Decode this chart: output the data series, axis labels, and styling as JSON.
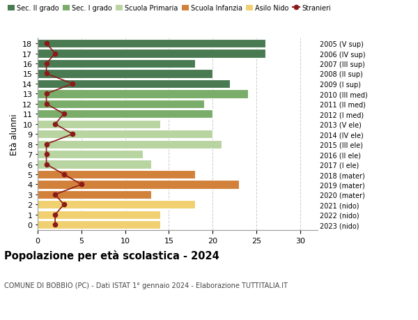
{
  "ages": [
    18,
    17,
    16,
    15,
    14,
    13,
    12,
    11,
    10,
    9,
    8,
    7,
    6,
    5,
    4,
    3,
    2,
    1,
    0
  ],
  "right_labels": [
    "2005 (V sup)",
    "2006 (IV sup)",
    "2007 (III sup)",
    "2008 (II sup)",
    "2009 (I sup)",
    "2010 (III med)",
    "2011 (II med)",
    "2012 (I med)",
    "2013 (V ele)",
    "2014 (IV ele)",
    "2015 (III ele)",
    "2016 (II ele)",
    "2017 (I ele)",
    "2018 (mater)",
    "2019 (mater)",
    "2020 (mater)",
    "2021 (nido)",
    "2022 (nido)",
    "2023 (nido)"
  ],
  "bar_values": [
    26,
    26,
    18,
    20,
    22,
    24,
    19,
    20,
    14,
    20,
    21,
    12,
    13,
    18,
    23,
    13,
    18,
    14,
    14
  ],
  "bar_colors": [
    "#4a7a52",
    "#4a7a52",
    "#4a7a52",
    "#4a7a52",
    "#4a7a52",
    "#7aad6a",
    "#7aad6a",
    "#7aad6a",
    "#b8d4a0",
    "#b8d4a0",
    "#b8d4a0",
    "#b8d4a0",
    "#b8d4a0",
    "#d2813a",
    "#d2813a",
    "#d2813a",
    "#f0d070",
    "#f0d070",
    "#f0d070"
  ],
  "stranieri_values": [
    1,
    2,
    1,
    1,
    4,
    1,
    1,
    3,
    2,
    4,
    1,
    1,
    1,
    3,
    5,
    2,
    3,
    2,
    2
  ],
  "stranieri_color": "#8b1a1a",
  "legend_labels": [
    "Sec. II grado",
    "Sec. I grado",
    "Scuola Primaria",
    "Scuola Infanzia",
    "Asilo Nido",
    "Stranieri"
  ],
  "legend_colors": [
    "#4a7a52",
    "#7aad6a",
    "#b8d4a0",
    "#d2813a",
    "#f0d070",
    "#8b1a1a"
  ],
  "ylabel": "Età alunni",
  "title": "Popolazione per età scolastica - 2024",
  "subtitle": "COMUNE DI BOBBIO (PC) - Dati ISTAT 1° gennaio 2024 - Elaborazione TUTTITALIA.IT",
  "xlim": [
    0,
    32
  ],
  "background_color": "#ffffff",
  "grid_color": "#cccccc"
}
